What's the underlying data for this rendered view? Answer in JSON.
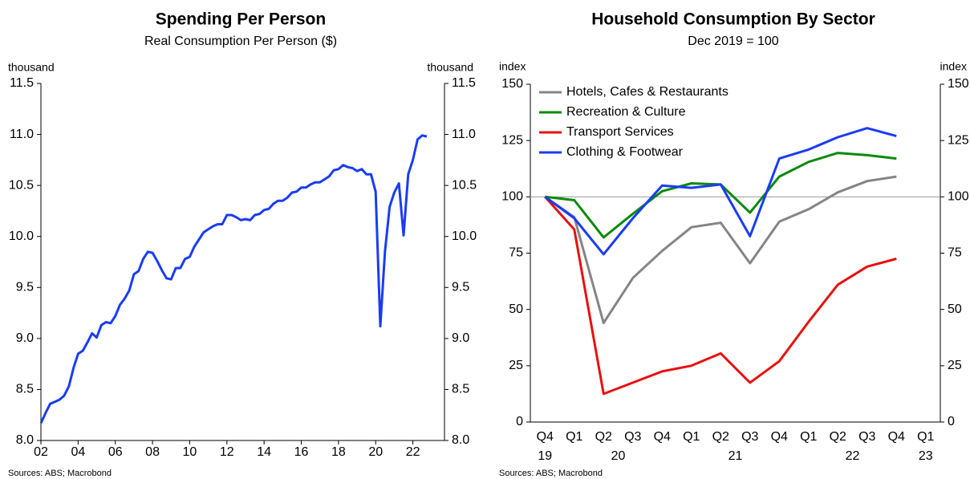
{
  "chart_data": [
    {
      "type": "line",
      "title": "Spending Per Person",
      "subtitle": "Real Consumption Per Person ($)",
      "ylabel": "thousand",
      "source": "Sources: ABS; Macrobond",
      "x": [
        2002,
        2002.25,
        2002.5,
        2002.75,
        2003,
        2003.25,
        2003.5,
        2003.75,
        2004,
        2004.25,
        2004.5,
        2004.75,
        2005,
        2005.25,
        2005.5,
        2005.75,
        2006,
        2006.25,
        2006.5,
        2006.75,
        2007,
        2007.25,
        2007.5,
        2007.75,
        2008,
        2008.25,
        2008.5,
        2008.75,
        2009,
        2009.25,
        2009.5,
        2009.75,
        2010,
        2010.25,
        2010.5,
        2010.75,
        2011,
        2011.25,
        2011.5,
        2011.75,
        2012,
        2012.25,
        2012.5,
        2012.75,
        2013,
        2013.25,
        2013.5,
        2013.75,
        2014,
        2014.25,
        2014.5,
        2014.75,
        2015,
        2015.25,
        2015.5,
        2015.75,
        2016,
        2016.25,
        2016.5,
        2016.75,
        2017,
        2017.25,
        2017.5,
        2017.75,
        2018,
        2018.25,
        2018.5,
        2018.75,
        2019,
        2019.25,
        2019.5,
        2019.75,
        2020,
        2020.25,
        2020.5,
        2020.75,
        2021,
        2021.25,
        2021.5,
        2021.75,
        2022,
        2022.25,
        2022.5,
        2022.75
      ],
      "series": [
        {
          "name": "Real Consumption Per Person",
          "color": "#1a3cf5",
          "values": [
            8.17,
            8.27,
            8.36,
            8.38,
            8.4,
            8.44,
            8.53,
            8.71,
            8.85,
            8.88,
            8.96,
            9.05,
            9.01,
            9.13,
            9.16,
            9.15,
            9.22,
            9.33,
            9.39,
            9.47,
            9.63,
            9.66,
            9.78,
            9.85,
            9.84,
            9.76,
            9.67,
            9.59,
            9.58,
            9.69,
            9.69,
            9.78,
            9.8,
            9.9,
            9.97,
            10.04,
            10.07,
            10.1,
            10.12,
            10.12,
            10.21,
            10.21,
            10.19,
            10.16,
            10.17,
            10.16,
            10.21,
            10.22,
            10.26,
            10.27,
            10.32,
            10.35,
            10.35,
            10.38,
            10.43,
            10.44,
            10.48,
            10.48,
            10.51,
            10.53,
            10.53,
            10.56,
            10.59,
            10.65,
            10.66,
            10.7,
            10.68,
            10.67,
            10.64,
            10.66,
            10.61,
            10.61,
            10.44,
            9.12,
            9.85,
            10.29,
            10.43,
            10.52,
            10.01,
            10.61,
            10.75,
            10.95,
            10.99,
            10.98
          ]
        }
      ],
      "xlim": [
        2002,
        2023.7
      ],
      "xticks": [
        {
          "value": 2002,
          "label": "02"
        },
        {
          "value": 2004,
          "label": "04"
        },
        {
          "value": 2006,
          "label": "06"
        },
        {
          "value": 2008,
          "label": "08"
        },
        {
          "value": 2010,
          "label": "10"
        },
        {
          "value": 2012,
          "label": "12"
        },
        {
          "value": 2014,
          "label": "14"
        },
        {
          "value": 2016,
          "label": "16"
        },
        {
          "value": 2018,
          "label": "18"
        },
        {
          "value": 2020,
          "label": "20"
        },
        {
          "value": 2022,
          "label": "22"
        }
      ],
      "ylim": [
        8.0,
        11.5
      ],
      "yticks": [
        {
          "value": 8,
          "label": "8.0"
        },
        8.5,
        {
          "value": 9,
          "label": "9.0"
        },
        9.5,
        {
          "value": 10,
          "label": "10.0"
        },
        10.5,
        {
          "value": 11,
          "label": "11.0"
        },
        11.5
      ]
    },
    {
      "type": "line",
      "title": "Household Consumption By Sector",
      "subtitle": "Dec 2019 = 100",
      "ylabel": "index",
      "source": "Sources: ABS; Macrobond",
      "categories": [
        "Q4",
        "Q1",
        "Q2",
        "Q3",
        "Q4",
        "Q1",
        "Q2",
        "Q3",
        "Q4",
        "Q1",
        "Q2",
        "Q3",
        "Q4",
        "Q1"
      ],
      "x_groups": [
        {
          "label": "19",
          "span": 1
        },
        {
          "label": "20",
          "span": 4
        },
        {
          "label": "21",
          "span": 4
        },
        {
          "label": "22",
          "span": 4
        },
        {
          "label": "23",
          "span": 1
        }
      ],
      "series": [
        {
          "name": "Hotels, Cafes & Restaurants",
          "color": "#858585",
          "values": [
            100,
            91,
            44,
            64,
            76,
            86.5,
            88.5,
            70.5,
            89,
            94.5,
            102,
            107,
            109,
            null
          ]
        },
        {
          "name": "Recreation & Culture",
          "color": "#0a8a0a",
          "values": [
            100,
            98.5,
            82,
            92.5,
            102.5,
            106,
            105.5,
            93,
            109,
            115.5,
            119.5,
            118.5,
            117,
            null
          ]
        },
        {
          "name": "Transport Services",
          "color": "#e81010",
          "values": [
            100,
            85.5,
            12.5,
            17.5,
            22.5,
            25,
            30.5,
            17.5,
            27,
            44.5,
            61,
            69,
            72.5,
            null
          ]
        },
        {
          "name": "Clothing & Footwear",
          "color": "#1a3cf5",
          "values": [
            100,
            90.5,
            74.5,
            90.5,
            105,
            104,
            105.5,
            82.5,
            117,
            121,
            126.5,
            130.5,
            127,
            null
          ]
        }
      ],
      "reference_line": 100,
      "ylim": [
        0,
        150
      ],
      "yticks": [
        0,
        25,
        50,
        75,
        100,
        125,
        150
      ],
      "legend": "upper left"
    }
  ]
}
